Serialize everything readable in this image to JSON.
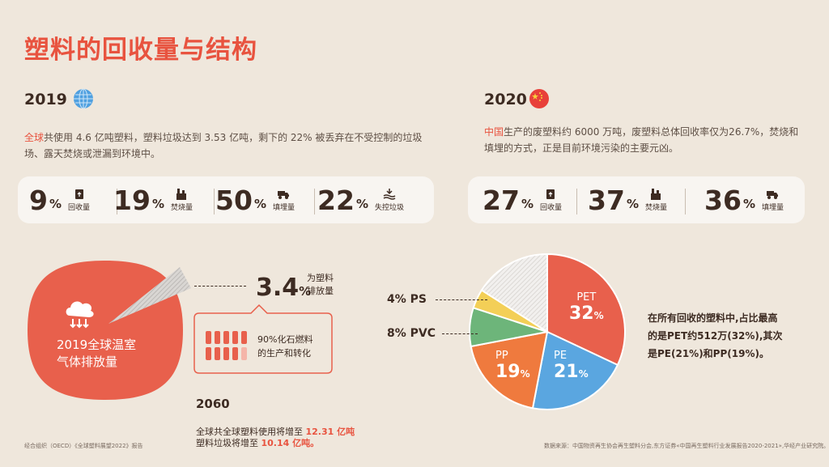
{
  "title": "塑料的回收量与结构",
  "left": {
    "year": "2019",
    "desc_hl": "全球",
    "desc_rest": "共使用 4.6 亿吨塑料，塑料垃圾达到 3.53 亿吨，剩下的 22% 被丢弃在不受控制的垃圾场、露天焚烧或泄漏到环境中。",
    "stats": [
      {
        "num": "9",
        "pct": "%",
        "label": "回收量",
        "icon": "recycle-bin-icon"
      },
      {
        "num": "19",
        "pct": "%",
        "label": "焚烧量",
        "icon": "incinerator-icon"
      },
      {
        "num": "50",
        "pct": "%",
        "label": "填埋量",
        "icon": "dump-truck-icon"
      },
      {
        "num": "22",
        "pct": "%",
        "label": "失控垃圾",
        "icon": "water-waves-icon"
      }
    ]
  },
  "right": {
    "year": "2020",
    "desc_hl": "中国",
    "desc_rest": "生产的废塑料约 6000 万吨，废塑料总体回收率仅为26.7%，焚烧和填埋的方式，正是目前环境污染的主要元凶。",
    "stats": [
      {
        "num": "27",
        "pct": "%",
        "label": "回收量",
        "icon": "recycle-bin-icon"
      },
      {
        "num": "37",
        "pct": "%",
        "label": "焚烧量",
        "icon": "incinerator-icon"
      },
      {
        "num": "36",
        "pct": "%",
        "label": "填埋量",
        "icon": "dump-truck-icon"
      }
    ]
  },
  "emission": {
    "blob_line1": "2019全球温室",
    "blob_line2": "气体排放量",
    "share_num": "3.4",
    "share_pct": "%",
    "share_label1": "为塑料",
    "share_label2": "排放量",
    "fossil_label1": "90%化石燃料",
    "fossil_label2": "的生产和转化"
  },
  "forecast": {
    "year": "2060",
    "line1_pre": "全球共全球塑料使用将增至 ",
    "line1_val": "12.31 亿吨",
    "line2_pre": "塑料垃圾将增至 ",
    "line2_val": "10.14 亿吨。"
  },
  "chart_data": {
    "type": "pie",
    "categories": [
      "PET",
      "PE",
      "PP",
      "PVC",
      "PS",
      ""
    ],
    "values": [
      32,
      21,
      19,
      8,
      4,
      16
    ],
    "colors": [
      "#e8604c",
      "#5aa6e0",
      "#ef7a3e",
      "#6db57a",
      "#f3cf57",
      "#e9e6e3"
    ],
    "outer_labels": [
      {
        "num": "4%",
        "name": "PS"
      },
      {
        "num": "8%",
        "name": "PVC"
      }
    ],
    "inner_labels": [
      {
        "name": "PET",
        "num": "32",
        "pct": "%"
      },
      {
        "name": "PE",
        "num": "21",
        "pct": "%"
      },
      {
        "name": "PP",
        "num": "19",
        "pct": "%"
      }
    ]
  },
  "pie_caption": {
    "line1": "在所有回收的塑料中,占比最高",
    "line2": "的是PET约512万(32%),其次",
    "line3": "是PE(21%)和PP(19%)。"
  },
  "source_left": "经合组织（OECD）《全球塑料展望2022》报告",
  "source_right": "数据来源：中国物资再生协会再生塑料分会,东方证券«中国再生塑料行业发展报告2020-2021»,华经产业研究院。"
}
